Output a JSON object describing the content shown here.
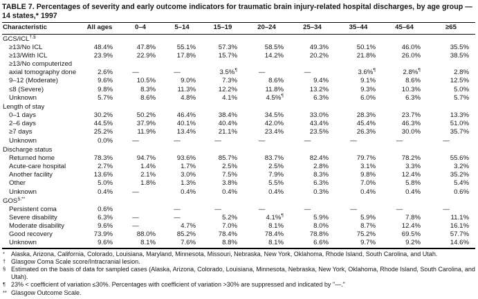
{
  "page": {
    "title": "TABLE 7. Percentages of severity and early outcome indicators for traumatic brain injury-related hospital discharges, by age group — 14 states,* 1997"
  },
  "table": {
    "columns": [
      "Characteristic",
      "All ages",
      "0–4",
      "5–14",
      "15–19",
      "20–24",
      "25–34",
      "35–44",
      "45–64",
      "≥65"
    ],
    "sections": [
      {
        "label": "GCS/ICL",
        "sup": "†,§",
        "rows": [
          {
            "label": "≥13/No ICL",
            "values": [
              "48.4%",
              "47.8%",
              "55.1%",
              "57.3%",
              "58.5%",
              "49.3%",
              "50.1%",
              "46.0%",
              "35.5%"
            ]
          },
          {
            "label": "≥13/With ICL",
            "values": [
              "23.9%",
              "22.9%",
              "17.8%",
              "15.7%",
              "14.2%",
              "20.2%",
              "21.8%",
              "26.0%",
              "38.5%"
            ]
          },
          {
            "label": "≥13/No computerized axial tomography done",
            "values": [
              "2.6%",
              "—",
              "—",
              "3.5%¶",
              "—",
              "—",
              "3.6%¶",
              "2.8%¶",
              "2.8%"
            ]
          },
          {
            "label": "9–12 (Moderate)",
            "values": [
              "9.6%",
              "10.5%",
              "9.0%",
              "7.3%",
              "8.6%",
              "9.4%",
              "9.1%",
              "8.6%",
              "12.5%"
            ]
          },
          {
            "label": "≤8 (Severe)",
            "values": [
              "9.8%",
              "8.3%",
              "11.3%",
              "12.2%",
              "11.8%",
              "13.2%",
              "9.3%",
              "10.3%",
              "5.0%"
            ]
          },
          {
            "label": "Unknown",
            "values": [
              "5.7%",
              "8.6%",
              "4.8%",
              "4.1%",
              "4.5%¶",
              "6.3%",
              "6.0%",
              "6.3%",
              "5.7%"
            ]
          }
        ]
      },
      {
        "label": "Length of stay",
        "sup": "",
        "rows": [
          {
            "label": "0–1 days",
            "values": [
              "30.2%",
              "50.2%",
              "46.4%",
              "38.4%",
              "34.5%",
              "33.0%",
              "28.3%",
              "23.7%",
              "13.3%"
            ]
          },
          {
            "label": "2–6 days",
            "values": [
              "44.5%",
              "37.9%",
              "40.1%",
              "40.4%",
              "42.0%",
              "43.4%",
              "45.4%",
              "46.3%",
              "51.0%"
            ]
          },
          {
            "label": "≥7 days",
            "values": [
              "25.2%",
              "11.9%",
              "13.4%",
              "21.1%",
              "23.4%",
              "23.5%",
              "26.3%",
              "30.0%",
              "35.7%"
            ]
          },
          {
            "label": "Unknown",
            "values": [
              "0.0%",
              "—",
              "—",
              "—",
              "—",
              "—",
              "—",
              "—",
              "—"
            ]
          }
        ]
      },
      {
        "label": "Discharge status",
        "sup": "",
        "rows": [
          {
            "label": "Returned home",
            "values": [
              "78.3%",
              "94.7%",
              "93.6%",
              "85.7%",
              "83.7%",
              "82.4%",
              "79.7%",
              "78.2%",
              "55.6%"
            ]
          },
          {
            "label": "Acute-care hospital",
            "values": [
              "2.7%",
              "1.4%",
              "1.7%",
              "2.5%",
              "2.5%",
              "2.8%",
              "3.1%",
              "3.3%",
              "3.2%"
            ]
          },
          {
            "label": "Another facility",
            "values": [
              "13.6%",
              "2.1%",
              "3.0%",
              "7.5%",
              "7.9%",
              "8.3%",
              "9.8%",
              "12.4%",
              "35.2%"
            ]
          },
          {
            "label": "Other",
            "values": [
              "5.0%",
              "1.8%",
              "1.3%",
              "3.8%",
              "5.5%",
              "6.3%",
              "7.0%",
              "5.8%",
              "5.4%"
            ]
          },
          {
            "label": "Unknown",
            "values": [
              "0.4%",
              "—",
              "0.4%",
              "0.4%",
              "0.4%",
              "0.3%",
              "0.4%",
              "0.4%",
              "0.6%"
            ]
          }
        ]
      },
      {
        "label": "GOS",
        "sup": "§,**",
        "rows": [
          {
            "label": "Persistent coma",
            "values": [
              "0.6%",
              "",
              "—",
              "—",
              "—",
              "—",
              "—",
              "—",
              "—"
            ]
          },
          {
            "label": "Severe disability",
            "values": [
              "6.3%",
              "—",
              "—",
              "5.2%",
              "4.1%¶",
              "5.9%",
              "5.9%",
              "7.8%",
              "11.1%"
            ]
          },
          {
            "label": "Moderate disability",
            "values": [
              "9.6%",
              "—",
              "4.7%",
              "7.0%",
              "8.1%",
              "8.0%",
              "8.7%",
              "12.4%",
              "16.1%"
            ]
          },
          {
            "label": "Good recovery",
            "values": [
              "73.9%",
              "88.0%",
              "85.2%",
              "78.4%",
              "78.4%",
              "78.8%",
              "75.2%",
              "69.5%",
              "57.7%"
            ]
          },
          {
            "label": "Unknown",
            "values": [
              "9.6%",
              "8.1%",
              "7.6%",
              "8.8%",
              "8.1%",
              "6.6%",
              "9.7%",
              "9.2%",
              "14.6%"
            ]
          }
        ]
      }
    ]
  },
  "footnotes": [
    {
      "marker": "*",
      "text": "Alaska, Arizona, California, Colorado, Louisiana, Maryland, Minnesota, Missouri, Nebraska, New York, Oklahoma, Rhode Island, South Carolina, and Utah."
    },
    {
      "marker": "†",
      "text": "Glasgow Coma Scale score/Intracranial lesion."
    },
    {
      "marker": "§",
      "text": "Estimated on the basis of data for sampled cases (Alaska, Arizona, Colorado, Louisiana, Minnesota, Nebraska, New York, Oklahoma, Rhode Island, South Carolina, and Utah)."
    },
    {
      "marker": "¶",
      "text": "23% < coefficient of variation ≤30%.  Percentages with coefficient of variation >30% are suppressed and indicated by \"—.\""
    },
    {
      "marker": "**",
      "text": "Glasgow Outcome Scale."
    }
  ]
}
